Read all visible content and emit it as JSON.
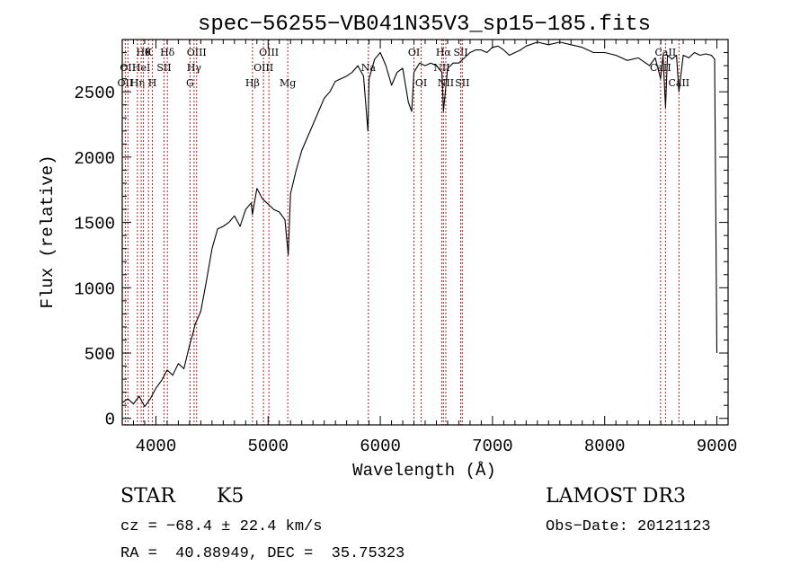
{
  "chart_data": {
    "type": "line",
    "title": "spec−56255−VB041N35V3_sp15−185.fits",
    "xlabel": "Wavelength (Å)",
    "ylabel": "Flux (relative)",
    "xlim": [
      3700,
      9100
    ],
    "ylim": [
      -50,
      2900
    ],
    "x_ticks": [
      4000,
      5000,
      6000,
      7000,
      8000,
      9000
    ],
    "y_ticks": [
      0,
      500,
      1000,
      1500,
      2000,
      2500
    ],
    "grid": false,
    "line_color": "#000000",
    "marker_color": "#b22222",
    "x": [
      3700,
      3750,
      3800,
      3850,
      3900,
      3950,
      4000,
      4050,
      4100,
      4150,
      4200,
      4250,
      4300,
      4330,
      4350,
      4400,
      4450,
      4500,
      4550,
      4600,
      4650,
      4700,
      4750,
      4800,
      4850,
      4860,
      4900,
      4950,
      5000,
      5050,
      5100,
      5150,
      5180,
      5200,
      5250,
      5300,
      5350,
      5400,
      5450,
      5500,
      5550,
      5600,
      5650,
      5700,
      5750,
      5800,
      5850,
      5890,
      5900,
      5950,
      6000,
      6050,
      6100,
      6150,
      6200,
      6250,
      6280,
      6300,
      6350,
      6400,
      6450,
      6500,
      6550,
      6563,
      6600,
      6650,
      6700,
      6750,
      6800,
      6850,
      6900,
      6950,
      7000,
      7050,
      7100,
      7150,
      7200,
      7250,
      7300,
      7400,
      7500,
      7600,
      7700,
      7800,
      7900,
      8000,
      8100,
      8200,
      8300,
      8400,
      8450,
      8498,
      8520,
      8542,
      8560,
      8600,
      8640,
      8662,
      8700,
      8750,
      8800,
      8850,
      8900,
      8950,
      8980,
      9000
    ],
    "y": [
      120,
      150,
      110,
      170,
      90,
      150,
      230,
      290,
      370,
      330,
      420,
      380,
      560,
      650,
      720,
      820,
      1050,
      1300,
      1450,
      1470,
      1500,
      1550,
      1470,
      1600,
      1650,
      1560,
      1760,
      1680,
      1640,
      1600,
      1580,
      1520,
      1250,
      1720,
      1900,
      2050,
      2150,
      2250,
      2350,
      2450,
      2500,
      2580,
      2600,
      2620,
      2650,
      2700,
      2620,
      2200,
      2600,
      2750,
      2800,
      2700,
      2550,
      2650,
      2680,
      2420,
      2350,
      2650,
      2720,
      2700,
      2720,
      2700,
      2650,
      2350,
      2680,
      2720,
      2720,
      2760,
      2800,
      2820,
      2820,
      2800,
      2840,
      2850,
      2820,
      2780,
      2800,
      2820,
      2850,
      2880,
      2860,
      2880,
      2860,
      2840,
      2800,
      2800,
      2780,
      2740,
      2760,
      2700,
      2760,
      2600,
      2780,
      2380,
      2780,
      2750,
      2780,
      2500,
      2780,
      2760,
      2800,
      2780,
      2790,
      2780,
      2750,
      500
    ],
    "lines": [
      {
        "wl": 3727,
        "label": "OII",
        "row": 2
      },
      {
        "wl": 3750,
        "label": "OII",
        "row": 1
      },
      {
        "wl": 3835,
        "label": "Hη",
        "row": 2
      },
      {
        "wl": 3869,
        "label": "HeI",
        "row": 1
      },
      {
        "wl": 3889,
        "label": "Hθ",
        "row": 0
      },
      {
        "wl": 3934,
        "label": "K",
        "row": 0
      },
      {
        "wl": 3969,
        "label": "H",
        "row": 2
      },
      {
        "wl": 4072,
        "label": "SII",
        "row": 1
      },
      {
        "wl": 4102,
        "label": "Hδ",
        "row": 0
      },
      {
        "wl": 4304,
        "label": "G",
        "row": 2
      },
      {
        "wl": 4340,
        "label": "Hγ",
        "row": 1
      },
      {
        "wl": 4363,
        "label": "OIII",
        "row": 0
      },
      {
        "wl": 4861,
        "label": "Hβ",
        "row": 2
      },
      {
        "wl": 4959,
        "label": "OIII",
        "row": 1
      },
      {
        "wl": 5007,
        "label": "OIII",
        "row": 0
      },
      {
        "wl": 5175,
        "label": "Mg",
        "row": 2
      },
      {
        "wl": 5894,
        "label": "Na",
        "row": 1
      },
      {
        "wl": 6300,
        "label": "OI",
        "row": 0
      },
      {
        "wl": 6364,
        "label": "OI",
        "row": 2
      },
      {
        "wl": 6548,
        "label": "NII",
        "row": 1
      },
      {
        "wl": 6563,
        "label": "Hα",
        "row": 0
      },
      {
        "wl": 6584,
        "label": "NII",
        "row": 2
      },
      {
        "wl": 6717,
        "label": "SII",
        "row": 0
      },
      {
        "wl": 6731,
        "label": "SII",
        "row": 2
      },
      {
        "wl": 8498,
        "label": "CaII",
        "row": 1
      },
      {
        "wl": 8542,
        "label": "CaII",
        "row": 0
      },
      {
        "wl": 8662,
        "label": "CaII",
        "row": 2
      }
    ]
  },
  "footer": {
    "class": "STAR",
    "subclass": "K5",
    "survey": "LAMOST DR3",
    "cz": "cz = −68.4 ± 22.4 km/s",
    "obs_date": "Obs−Date: 20121123",
    "radec": "RA =  40.88949, DEC =  35.75323"
  }
}
